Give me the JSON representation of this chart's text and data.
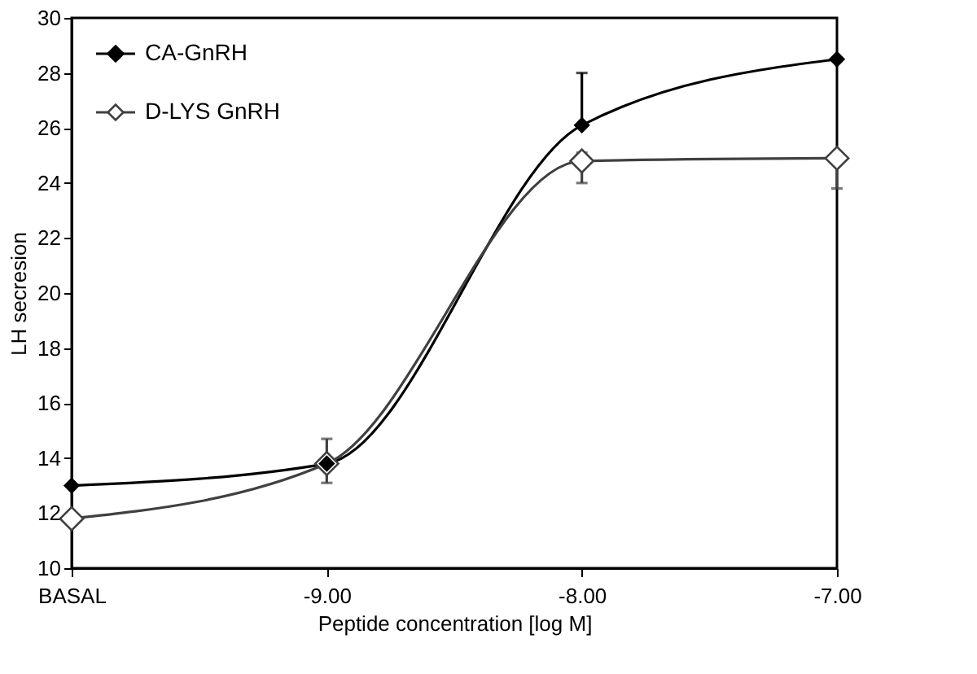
{
  "chart_data": {
    "type": "line",
    "xlabel": "Peptide concentration [log M]",
    "ylabel": "LH secresion",
    "categories": [
      "BASAL",
      "-9.00",
      "-8.00",
      "-7.00"
    ],
    "series": [
      {
        "name": "CA-GnRH",
        "color": "#000000",
        "values": [
          13.0,
          13.8,
          26.1,
          28.5
        ],
        "errors": [
          null,
          null,
          [
            26.1,
            28.0
          ],
          null
        ]
      },
      {
        "name": "D-LYS GnRH",
        "color": "#404040",
        "values": [
          11.8,
          13.8,
          24.8,
          24.9
        ],
        "errors": [
          null,
          [
            13.1,
            14.7
          ],
          [
            24.0,
            25.1
          ],
          [
            23.8,
            24.9
          ]
        ]
      }
    ],
    "ylim": [
      10,
      30
    ],
    "yticks": [
      10,
      12,
      14,
      16,
      18,
      20,
      22,
      24,
      26,
      28,
      30
    ],
    "grid": false,
    "legend": "top left",
    "marker": "diamond",
    "line_style": "solid"
  }
}
